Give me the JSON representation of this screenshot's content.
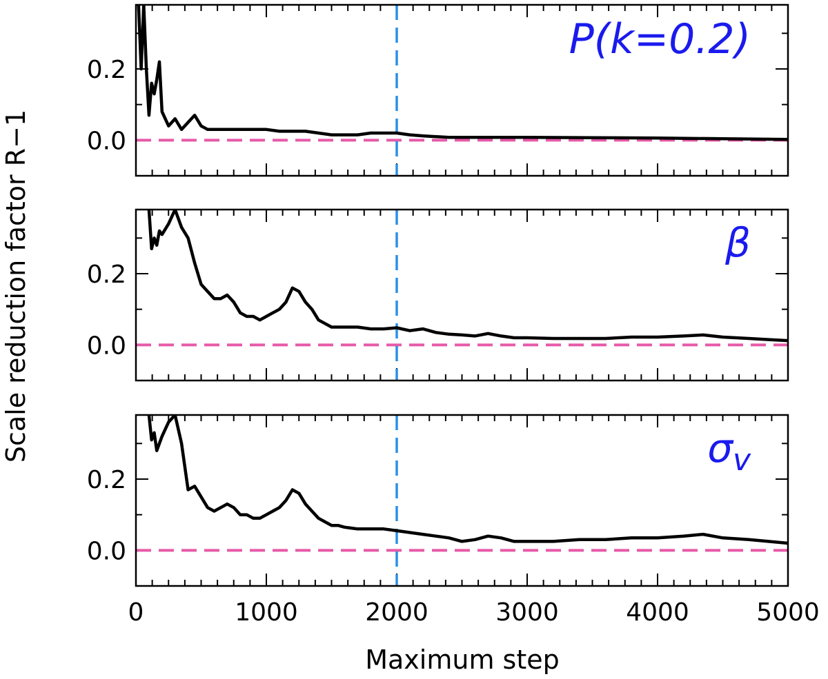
{
  "chart_data": [
    {
      "type": "line",
      "panel_label": "P(k=0.2)",
      "xlim": [
        0,
        5000
      ],
      "ylim": [
        -0.1,
        0.38
      ],
      "yticks": [
        0.0,
        0.2
      ],
      "ytick_labels": [
        "0.0",
        "0.2"
      ],
      "vline_x": 2000,
      "hline_y": 0.0,
      "series": [
        {
          "color": "#000000",
          "x": [
            20,
            40,
            60,
            80,
            100,
            120,
            140,
            160,
            180,
            200,
            250,
            300,
            350,
            400,
            450,
            500,
            550,
            600,
            700,
            800,
            900,
            1000,
            1100,
            1200,
            1300,
            1400,
            1500,
            1600,
            1700,
            1800,
            1900,
            2000,
            2100,
            2200,
            2300,
            2400,
            2600,
            2800,
            3000,
            3500,
            4000,
            4500,
            5000
          ],
          "y": [
            0.38,
            0.2,
            0.38,
            0.2,
            0.07,
            0.16,
            0.13,
            0.17,
            0.22,
            0.08,
            0.04,
            0.06,
            0.03,
            0.05,
            0.07,
            0.04,
            0.03,
            0.03,
            0.03,
            0.03,
            0.03,
            0.03,
            0.025,
            0.025,
            0.025,
            0.02,
            0.015,
            0.015,
            0.015,
            0.02,
            0.02,
            0.02,
            0.015,
            0.012,
            0.01,
            0.008,
            0.008,
            0.008,
            0.008,
            0.007,
            0.006,
            0.004,
            0.002
          ]
        }
      ]
    },
    {
      "type": "line",
      "panel_label": "β",
      "xlim": [
        0,
        5000
      ],
      "ylim": [
        -0.1,
        0.38
      ],
      "yticks": [
        0.0,
        0.2
      ],
      "ytick_labels": [
        "0.0",
        "0.2"
      ],
      "vline_x": 2000,
      "hline_y": 0.0,
      "series": [
        {
          "color": "#000000",
          "x": [
            100,
            120,
            140,
            160,
            180,
            200,
            250,
            300,
            350,
            400,
            450,
            500,
            550,
            600,
            650,
            700,
            750,
            800,
            850,
            900,
            950,
            1000,
            1050,
            1100,
            1150,
            1200,
            1250,
            1300,
            1350,
            1400,
            1450,
            1500,
            1550,
            1600,
            1700,
            1800,
            1900,
            2000,
            2100,
            2200,
            2300,
            2400,
            2500,
            2600,
            2700,
            2800,
            2900,
            3000,
            3200,
            3400,
            3600,
            3800,
            4000,
            4200,
            4350,
            4500,
            4700,
            4850,
            5000
          ],
          "y": [
            0.38,
            0.27,
            0.3,
            0.28,
            0.32,
            0.31,
            0.34,
            0.38,
            0.33,
            0.3,
            0.23,
            0.17,
            0.15,
            0.13,
            0.13,
            0.14,
            0.12,
            0.09,
            0.08,
            0.08,
            0.07,
            0.08,
            0.09,
            0.1,
            0.12,
            0.16,
            0.15,
            0.12,
            0.1,
            0.07,
            0.06,
            0.05,
            0.05,
            0.05,
            0.05,
            0.045,
            0.045,
            0.048,
            0.04,
            0.045,
            0.035,
            0.03,
            0.028,
            0.025,
            0.032,
            0.025,
            0.02,
            0.02,
            0.018,
            0.018,
            0.018,
            0.022,
            0.022,
            0.025,
            0.028,
            0.022,
            0.018,
            0.015,
            0.012
          ]
        }
      ]
    },
    {
      "type": "line",
      "panel_label": "σ_v",
      "xlim": [
        0,
        5000
      ],
      "ylim": [
        -0.1,
        0.38
      ],
      "yticks": [
        0.0,
        0.2
      ],
      "ytick_labels": [
        "0.0",
        "0.2"
      ],
      "vline_x": 2000,
      "hline_y": 0.0,
      "series": [
        {
          "color": "#000000",
          "x": [
            100,
            120,
            140,
            160,
            180,
            200,
            250,
            300,
            350,
            400,
            450,
            500,
            550,
            600,
            650,
            700,
            750,
            800,
            850,
            900,
            950,
            1000,
            1050,
            1100,
            1150,
            1200,
            1250,
            1300,
            1350,
            1400,
            1450,
            1500,
            1550,
            1600,
            1700,
            1800,
            1900,
            2000,
            2100,
            2200,
            2300,
            2400,
            2500,
            2600,
            2700,
            2800,
            2900,
            3000,
            3200,
            3400,
            3600,
            3800,
            4000,
            4200,
            4350,
            4500,
            4700,
            4850,
            5000
          ],
          "y": [
            0.38,
            0.31,
            0.33,
            0.28,
            0.3,
            0.32,
            0.36,
            0.38,
            0.3,
            0.17,
            0.18,
            0.15,
            0.12,
            0.11,
            0.12,
            0.13,
            0.12,
            0.1,
            0.1,
            0.09,
            0.09,
            0.1,
            0.11,
            0.12,
            0.14,
            0.17,
            0.16,
            0.13,
            0.11,
            0.09,
            0.08,
            0.07,
            0.07,
            0.065,
            0.06,
            0.06,
            0.06,
            0.055,
            0.05,
            0.045,
            0.04,
            0.035,
            0.025,
            0.03,
            0.04,
            0.035,
            0.025,
            0.025,
            0.025,
            0.03,
            0.03,
            0.035,
            0.035,
            0.04,
            0.045,
            0.035,
            0.03,
            0.025,
            0.02
          ]
        }
      ]
    }
  ],
  "axes": {
    "xticks": [
      0,
      1000,
      2000,
      3000,
      4000,
      5000
    ],
    "xtick_labels": [
      "0",
      "1000",
      "2000",
      "3000",
      "4000",
      "5000"
    ],
    "xlabel": "Maximum step",
    "ylabel": "Scale reduction factor R−1"
  },
  "colors": {
    "data_line": "#000000",
    "vline": "#2b8fe8",
    "hline": "#e65aa8",
    "panel_label": "#1a1aee"
  }
}
